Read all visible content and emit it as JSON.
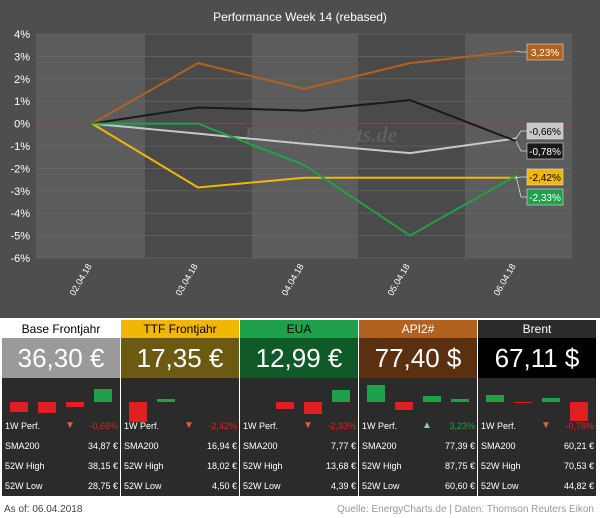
{
  "chart_data": {
    "type": "line",
    "title": "Performance   Week 14 (rebased)",
    "x": [
      "02.04.18",
      "03.04.18",
      "04.04.18",
      "05.04.18",
      "06.04.18"
    ],
    "ylim": [
      -6,
      4
    ],
    "yticks": [
      "4%",
      "3%",
      "2%",
      "1%",
      "0%",
      "-1%",
      "-2%",
      "-3%",
      "-4%",
      "-5%",
      "-6%"
    ],
    "grid": true,
    "series": [
      {
        "name": "API2#",
        "color": "#b0621e",
        "values": [
          0,
          2.7,
          1.55,
          2.7,
          3.23
        ],
        "end_label": "3,23%"
      },
      {
        "name": "Base Frontjahr",
        "color": "#c8c8c8",
        "values": [
          0,
          -0.45,
          -0.9,
          -1.32,
          -0.66
        ],
        "end_label": "-0,66%"
      },
      {
        "name": "Brent",
        "color": "#1a1a1a",
        "values": [
          0,
          0.72,
          0.58,
          1.05,
          -0.78
        ],
        "end_label": "-0,78%"
      },
      {
        "name": "TTF Frontjahr",
        "color": "#f2b705",
        "values": [
          0,
          -2.85,
          -2.42,
          -2.42,
          -2.42
        ],
        "end_label": "-2,42%"
      },
      {
        "name": "EUA",
        "color": "#1ea14a",
        "values": [
          0,
          0.0,
          -1.85,
          -5.0,
          -2.33
        ],
        "end_label": "-2,33%"
      }
    ],
    "reference_line": {
      "y": 0,
      "color": "#e02020"
    },
    "watermark": "EnergyCharts.de"
  },
  "panels": [
    {
      "name": "Base Frontjahr",
      "head_bg": "#ffffff",
      "head_color": "#000000",
      "price": "36,30 €",
      "price_bg": "#9a9a9a",
      "bars": [
        {
          "v": -1.0,
          "c": "#e02020"
        },
        {
          "v": -1.1,
          "c": "#e02020"
        },
        {
          "v": -0.5,
          "c": "#e02020"
        },
        {
          "v": 1.3,
          "c": "#1ea14a"
        }
      ],
      "perf_label": "1W Perf.",
      "perf": "-0,66%",
      "perf_color": "#e02020",
      "arrow": "down",
      "sma_label": "SMA200",
      "sma": "34,87 €",
      "high_label": "52W High",
      "high": "38,15 €",
      "low_label": "52W Low",
      "low": "28,75 €"
    },
    {
      "name": "TTF Frontjahr",
      "head_bg": "#f2b705",
      "head_color": "#000000",
      "price": "17,35 €",
      "price_bg": "#6b5a10",
      "bars": [
        {
          "v": -2.0,
          "c": "#e02020"
        },
        {
          "v": 0.3,
          "c": "#1ea14a"
        },
        {
          "v": 0,
          "c": "#1ea14a"
        },
        {
          "v": 0,
          "c": "#1ea14a"
        }
      ],
      "perf_label": "1W Perf.",
      "perf": "-2,42%",
      "perf_color": "#e02020",
      "arrow": "down",
      "sma_label": "SMA200",
      "sma": "16,94 €",
      "high_label": "52W High",
      "high": "18,02 €",
      "low_label": "52W Low",
      "low": "4,50 €"
    },
    {
      "name": "EUA",
      "head_bg": "#1ea14a",
      "head_color": "#000000",
      "price": "12,99 €",
      "price_bg": "#0f5a28",
      "bars": [
        {
          "v": 0,
          "c": "#1ea14a"
        },
        {
          "v": -0.7,
          "c": "#e02020"
        },
        {
          "v": -1.2,
          "c": "#e02020"
        },
        {
          "v": 1.2,
          "c": "#1ea14a"
        }
      ],
      "perf_label": "1W Perf.",
      "perf": "-2,33%",
      "perf_color": "#e02020",
      "arrow": "down",
      "sma_label": "SMA200",
      "sma": "7,77 €",
      "high_label": "52W High",
      "high": "13,68 €",
      "low_label": "52W Low",
      "low": "4,39 €"
    },
    {
      "name": "API2#",
      "head_bg": "#b0621e",
      "head_color": "#ffffff",
      "price": "77,40 $",
      "price_bg": "#5a3010",
      "bars": [
        {
          "v": 1.7,
          "c": "#1ea14a"
        },
        {
          "v": -0.8,
          "c": "#e02020"
        },
        {
          "v": 0.6,
          "c": "#1ea14a"
        },
        {
          "v": 0.3,
          "c": "#1ea14a"
        }
      ],
      "perf_label": "1W Perf.",
      "perf": "3,23%",
      "perf_color": "#1ea14a",
      "arrow": "up",
      "sma_label": "SMA200",
      "sma": "77,39 €",
      "high_label": "52W High",
      "high": "87,75 €",
      "low_label": "52W Low",
      "low": "60,60 €"
    },
    {
      "name": "Brent",
      "head_bg": "#2b2b2b",
      "head_color": "#ffffff",
      "price": "67,11 $",
      "price_bg": "#000000",
      "bars": [
        {
          "v": 0.7,
          "c": "#1ea14a"
        },
        {
          "v": -0.1,
          "c": "#e02020"
        },
        {
          "v": 0.45,
          "c": "#1ea14a"
        },
        {
          "v": -1.9,
          "c": "#e02020"
        }
      ],
      "perf_label": "1W Perf.",
      "perf": "-0,78%",
      "perf_color": "#e02020",
      "arrow": "down",
      "sma_label": "SMA200",
      "sma": "60,21 €",
      "high_label": "52W High",
      "high": "70,53 €",
      "low_label": "52W Low",
      "low": "44,82 €"
    }
  ],
  "footer": {
    "as_of": "As of: 06.04.2018",
    "source": "Quelle: EnergyCharts.de | Daten: Thomson Reuters Eikon"
  }
}
